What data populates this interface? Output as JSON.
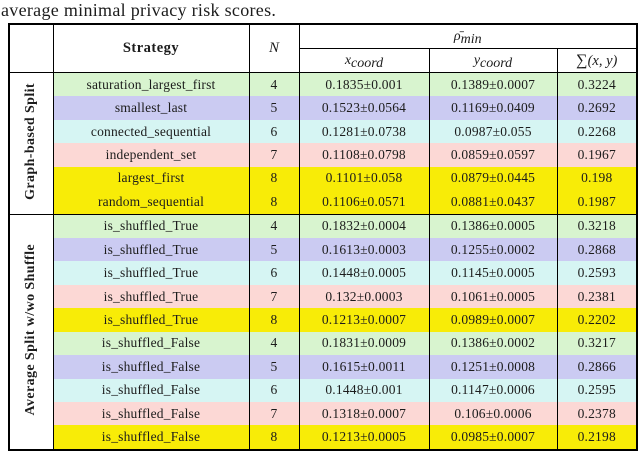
{
  "caption": "average minimal privacy risk scores.",
  "colors": {
    "green": "#d8f4cf",
    "lavender": "#cbcbf2",
    "cyan": "#d6f5f3",
    "pink": "#fcd8d5",
    "yellow": "#f8ec07"
  },
  "table": {
    "header": {
      "strategy": "Strategy",
      "n": "N",
      "rho_base": "ρ̄",
      "rho_sub": "min",
      "x_base": "x",
      "x_sub": "coord",
      "y_base": "y",
      "y_sub": "coord",
      "sum_sym": "∑",
      "sum_args": "(x, y)"
    },
    "groups": [
      {
        "label": "Graph-based Split",
        "rows": [
          {
            "strategy": "saturation_largest_first",
            "n": "4",
            "x": "0.1835±0.001",
            "y": "0.1389±0.0007",
            "sum": "0.3224",
            "color": "green"
          },
          {
            "strategy": "smallest_last",
            "n": "5",
            "x": "0.1523±0.0564",
            "y": "0.1169±0.0409",
            "sum": "0.2692",
            "color": "lavender"
          },
          {
            "strategy": "connected_sequential",
            "n": "6",
            "x": "0.1281±0.0738",
            "y": "0.0987±0.055",
            "sum": "0.2268",
            "color": "cyan"
          },
          {
            "strategy": "independent_set",
            "n": "7",
            "x": "0.1108±0.0798",
            "y": "0.0859±0.0597",
            "sum": "0.1967",
            "color": "pink"
          },
          {
            "strategy": "largest_first",
            "n": "8",
            "x": "0.1101±0.058",
            "y": "0.0879±0.0445",
            "sum": "0.198",
            "color": "yellow"
          },
          {
            "strategy": "random_sequential",
            "n": "8",
            "x": "0.1106±0.0571",
            "y": "0.0881±0.0437",
            "sum": "0.1987",
            "color": "yellow"
          }
        ]
      },
      {
        "label": "Average Split w/wo Shuffle",
        "rows": [
          {
            "strategy": "is_shuffled_True",
            "n": "4",
            "x": "0.1832±0.0004",
            "y": "0.1386±0.0005",
            "sum": "0.3218",
            "color": "green"
          },
          {
            "strategy": "is_shuffled_True",
            "n": "5",
            "x": "0.1613±0.0003",
            "y": "0.1255±0.0002",
            "sum": "0.2868",
            "color": "lavender"
          },
          {
            "strategy": "is_shuffled_True",
            "n": "6",
            "x": "0.1448±0.0005",
            "y": "0.1145±0.0005",
            "sum": "0.2593",
            "color": "cyan"
          },
          {
            "strategy": "is_shuffled_True",
            "n": "7",
            "x": "0.132±0.0003",
            "y": "0.1061±0.0005",
            "sum": "0.2381",
            "color": "pink"
          },
          {
            "strategy": "is_shuffled_True",
            "n": "8",
            "x": "0.1213±0.0007",
            "y": "0.0989±0.0007",
            "sum": "0.2202",
            "color": "yellow"
          },
          {
            "strategy": "is_shuffled_False",
            "n": "4",
            "x": "0.1831±0.0009",
            "y": "0.1386±0.0002",
            "sum": "0.3217",
            "color": "green"
          },
          {
            "strategy": "is_shuffled_False",
            "n": "5",
            "x": "0.1615±0.0011",
            "y": "0.1251±0.0008",
            "sum": "0.2866",
            "color": "lavender"
          },
          {
            "strategy": "is_shuffled_False",
            "n": "6",
            "x": "0.1448±0.001",
            "y": "0.1147±0.0006",
            "sum": "0.2595",
            "color": "cyan"
          },
          {
            "strategy": "is_shuffled_False",
            "n": "7",
            "x": "0.1318±0.0007",
            "y": "0.106±0.0006",
            "sum": "0.2378",
            "color": "pink"
          },
          {
            "strategy": "is_shuffled_False",
            "n": "8",
            "x": "0.1213±0.0005",
            "y": "0.0985±0.0007",
            "sum": "0.2198",
            "color": "yellow"
          }
        ]
      }
    ]
  }
}
